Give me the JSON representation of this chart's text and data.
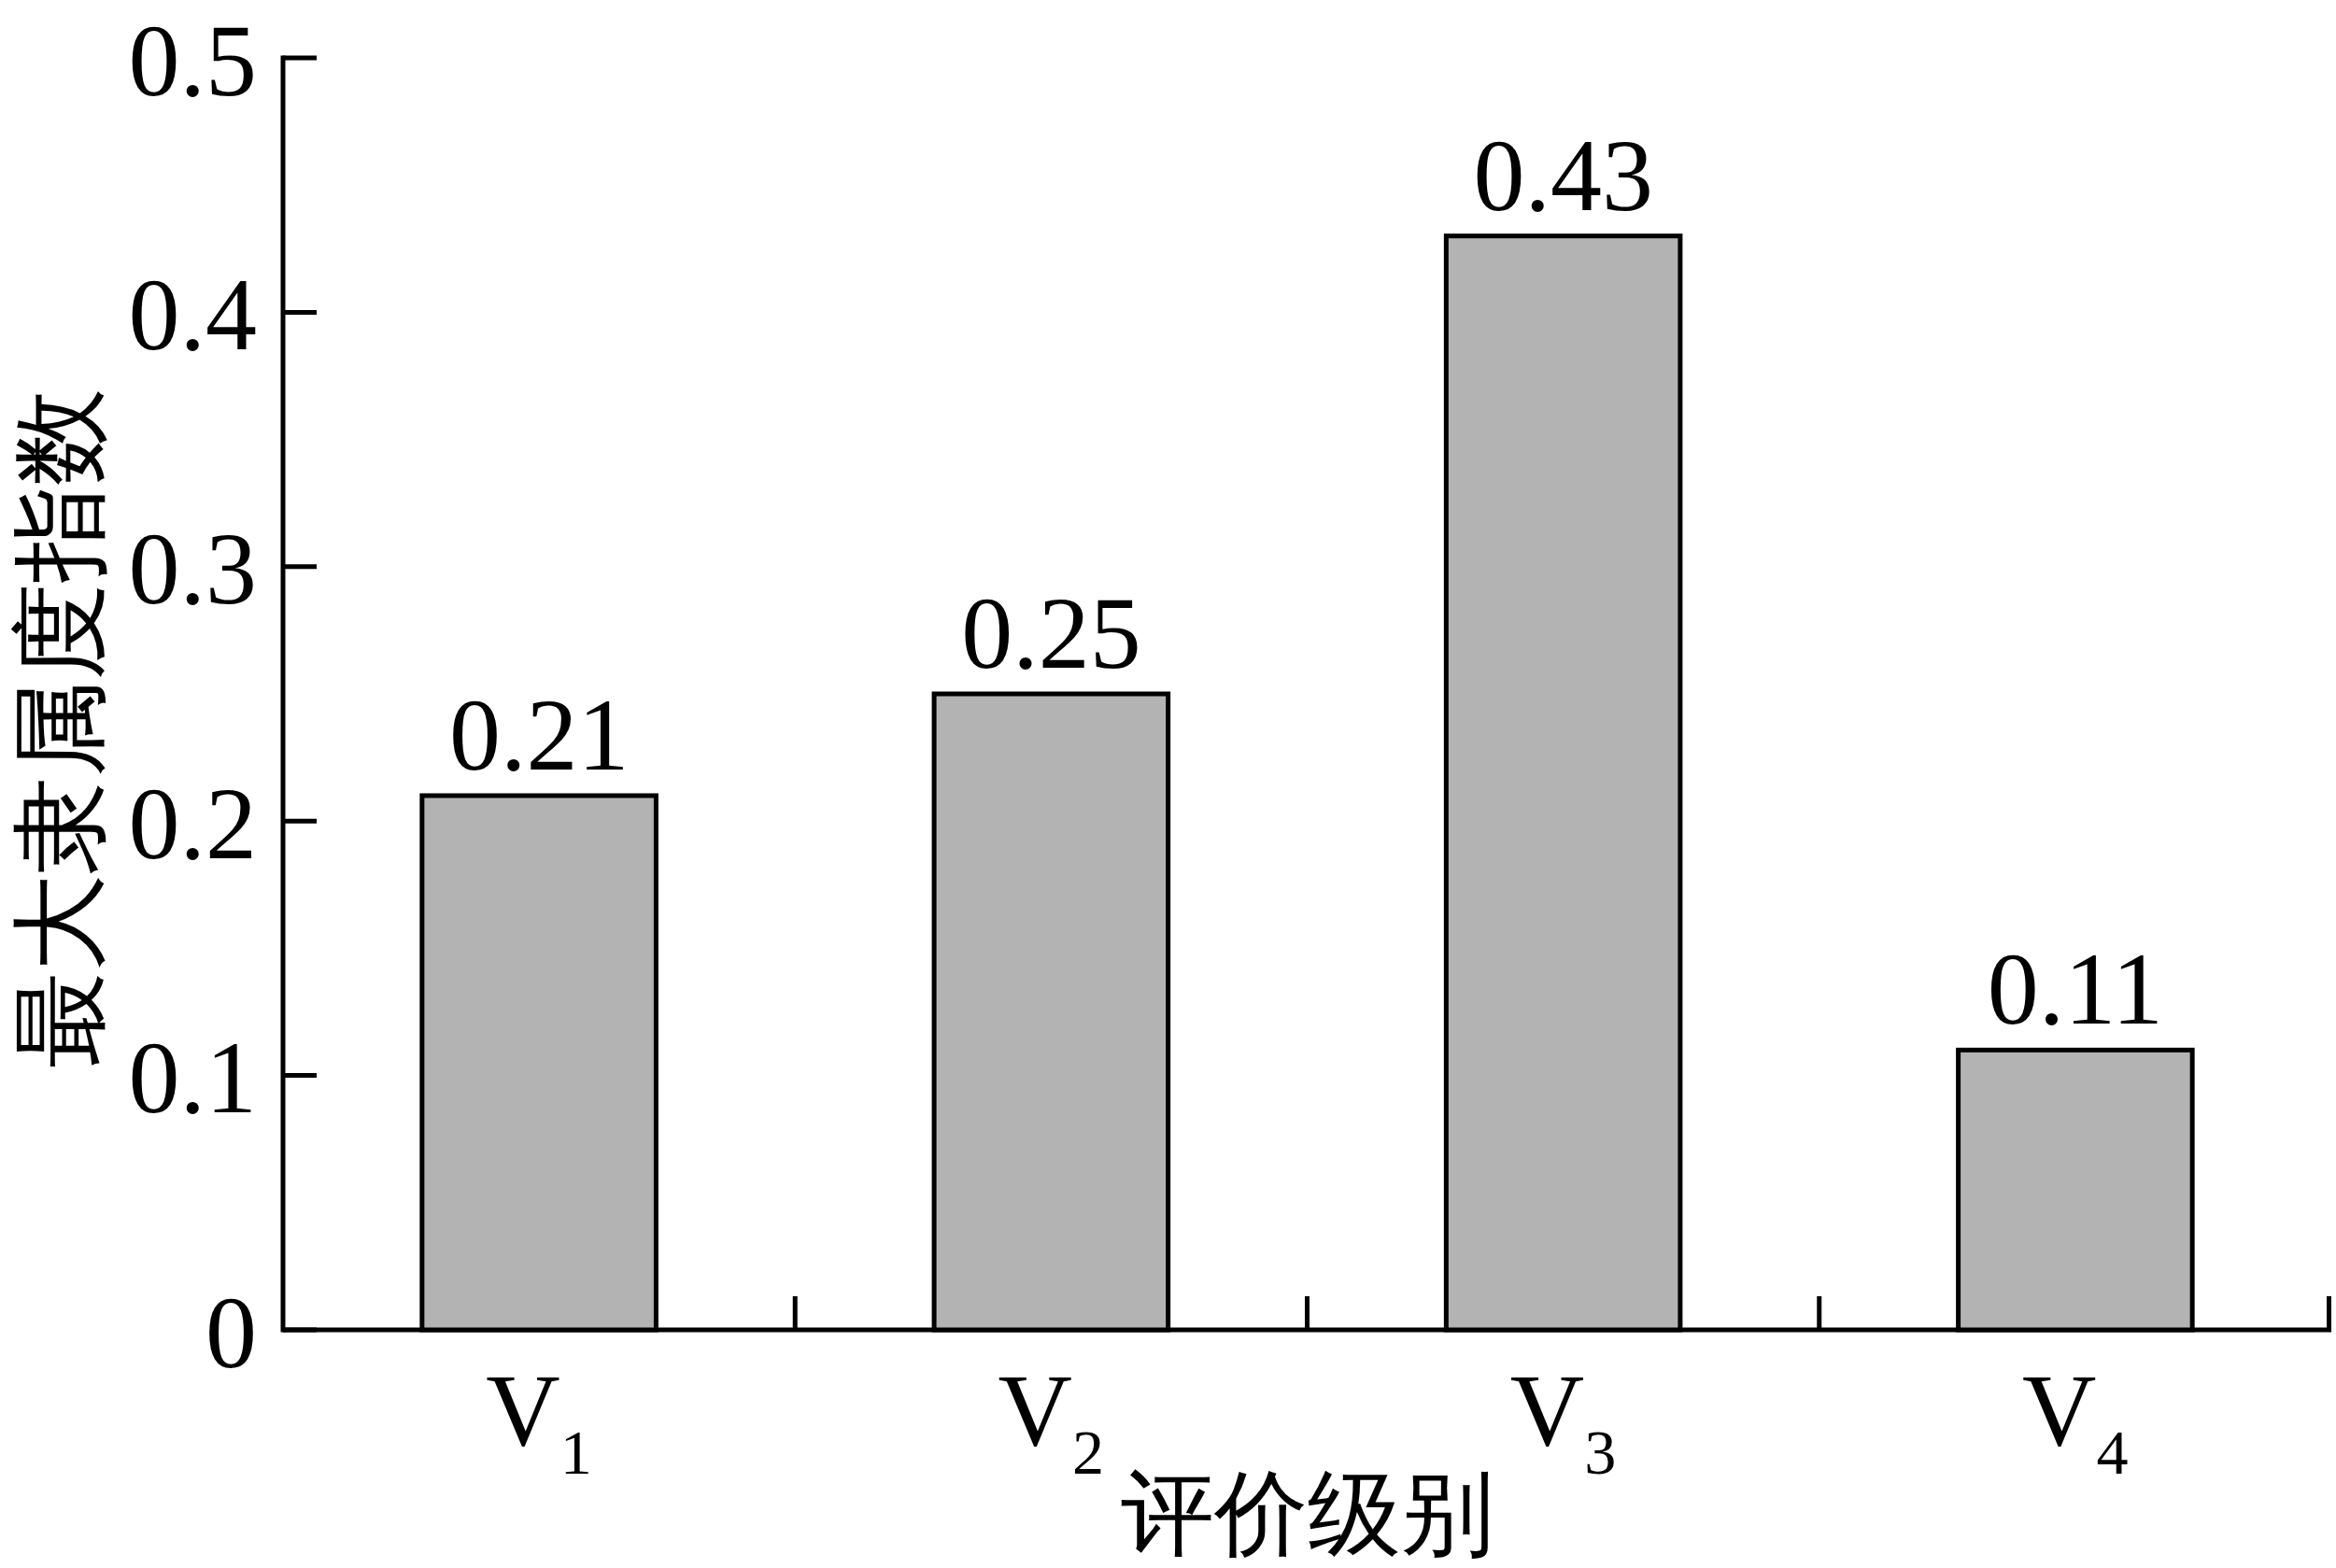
{
  "chart_data": {
    "type": "bar",
    "xlabel": "评价级别",
    "ylabel": "最大隶属度指数",
    "categories": [
      "V$_{1}$",
      "V$_{2}$",
      "V$_{3}$",
      "V$_{4}$"
    ],
    "values": [
      0.21,
      0.25,
      0.43,
      0.11
    ],
    "color": "#b3b3b3",
    "ylim": [
      0,
      0.5
    ],
    "yticks": [
      0,
      0.1,
      0.2,
      0.3,
      0.4,
      0.5
    ],
    "data_labels": true
  }
}
